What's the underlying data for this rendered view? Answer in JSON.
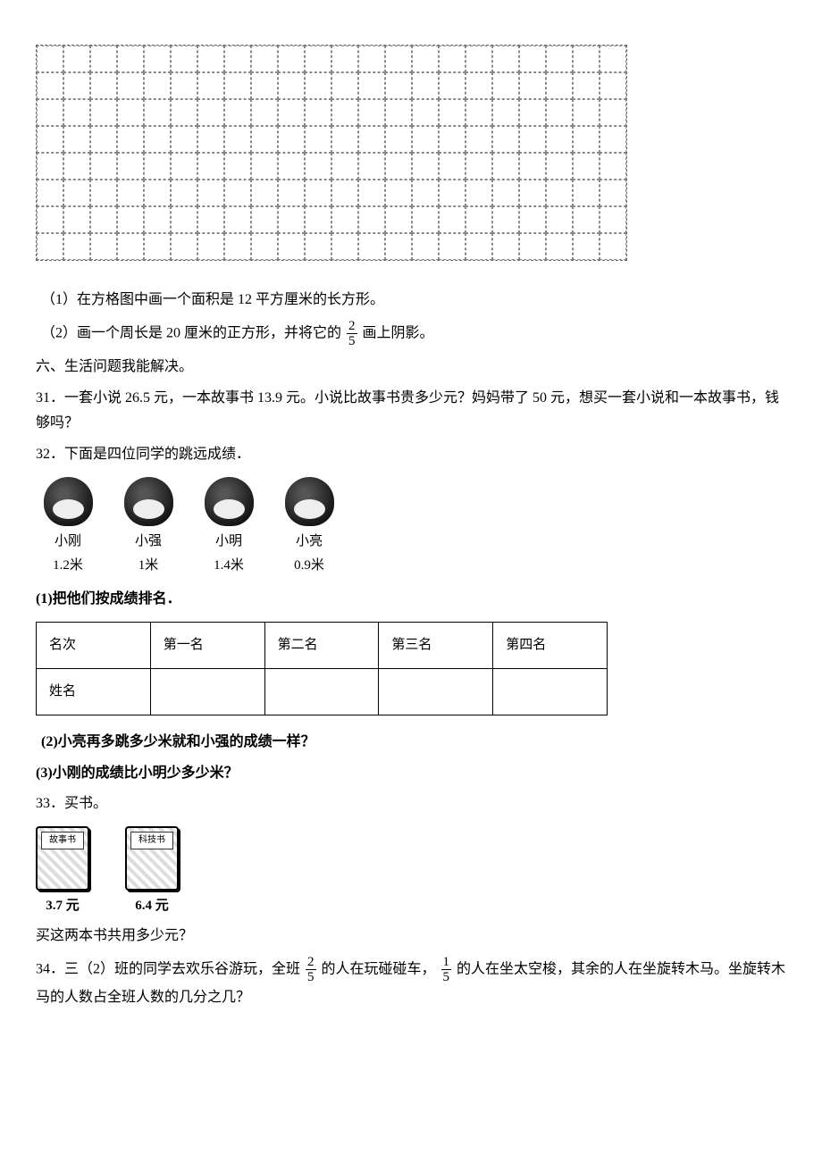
{
  "grid": {
    "cols": 22,
    "rows": 8
  },
  "q_drawing": {
    "item1": "（1）在方格图中画一个面积是 12 平方厘米的长方形。",
    "item2_a": "（2）画一个周长是 20 厘米的正方形，并将它的",
    "item2_frac_num": "2",
    "item2_frac_den": "5",
    "item2_b": "画上阴影。"
  },
  "section6": "六、生活问题我能解决。",
  "q31": "31．一套小说 26.5 元，一本故事书 13.9 元。小说比故事书贵多少元？妈妈带了 50 元，想买一套小说和一本故事书，钱够吗？",
  "q32": {
    "stem": "32．下面是四位同学的跳远成绩．",
    "students": [
      {
        "name": "小刚",
        "dist": "1.2米"
      },
      {
        "name": "小强",
        "dist": "1米"
      },
      {
        "name": "小明",
        "dist": "1.4米"
      },
      {
        "name": "小亮",
        "dist": "0.9米"
      }
    ],
    "sub1": "(1)把他们按成绩排名．",
    "table": {
      "header": [
        "名次",
        "第一名",
        "第二名",
        "第三名",
        "第四名"
      ],
      "row2_label": "姓名"
    },
    "sub2": "(2)小亮再多跳多少米就和小强的成绩一样？",
    "sub3": "(3)小刚的成绩比小明少多少米？"
  },
  "q33": {
    "stem": "33．买书。",
    "books": [
      {
        "title": "故事书",
        "price": "3.7 元"
      },
      {
        "title": "科技书",
        "price": "6.4 元"
      }
    ],
    "question": "买这两本书共用多少元？"
  },
  "q34": {
    "a": "34．三（2）班的同学去欢乐谷游玩，全班",
    "f1_num": "2",
    "f1_den": "5",
    "b": "的人在玩碰碰车，",
    "f2_num": "1",
    "f2_den": "5",
    "c": "的人在坐太空梭，其余的人在坐旋转木马。坐旋转木马的人数占全班人数的几分之几？"
  }
}
